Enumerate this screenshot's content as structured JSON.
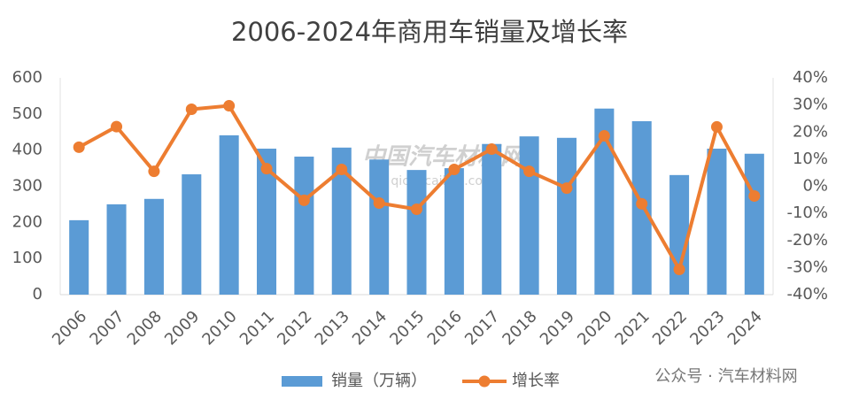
{
  "chart_data": {
    "type": "bar-line",
    "title": "2006-2024年商用车销量及增长率",
    "categories": [
      "2006",
      "2007",
      "2008",
      "2009",
      "2010",
      "2011",
      "2012",
      "2013",
      "2014",
      "2015",
      "2016",
      "2017",
      "2018",
      "2019",
      "2020",
      "2021",
      "2022",
      "2023",
      "2024"
    ],
    "series": [
      {
        "name": "销量（万辆）",
        "color": "#5b9bd5",
        "type": "bar",
        "axis": "y",
        "values": [
          206,
          250,
          265,
          333,
          441,
          404,
          382,
          407,
          374,
          345,
          350,
          417,
          438,
          434,
          515,
          480,
          331,
          404,
          390
        ]
      },
      {
        "name": "增长率",
        "color": "#ed7d31",
        "type": "line",
        "axis": "y2",
        "values": [
          14.4,
          22,
          5.5,
          28.4,
          29.7,
          6.5,
          -5.2,
          6.2,
          -6.2,
          -8.5,
          6.2,
          13.7,
          5.5,
          -0.7,
          18.6,
          -6.5,
          -30.7,
          21.9,
          -3.6
        ]
      }
    ],
    "ylim": [
      0,
      600
    ],
    "yticks": [
      0,
      100,
      200,
      300,
      400,
      500,
      600
    ],
    "y2lim": [
      -40,
      40
    ],
    "y2ticks": [
      {
        "value": -40,
        "label": "-40%"
      },
      {
        "value": -30,
        "label": "-30%"
      },
      {
        "value": -20,
        "label": "-20%"
      },
      {
        "value": -10,
        "label": "-10%"
      },
      {
        "value": 0,
        "label": "0%"
      },
      {
        "value": 10,
        "label": "10%"
      },
      {
        "value": 20,
        "label": "20%"
      },
      {
        "value": 30,
        "label": "30%"
      },
      {
        "value": 40,
        "label": "40%"
      }
    ],
    "grid": false,
    "legend": "bottom",
    "watermark": [
      "中国汽车材料网",
      "qichecailiao.com"
    ],
    "source": "公众号 · 汽车材料网"
  }
}
